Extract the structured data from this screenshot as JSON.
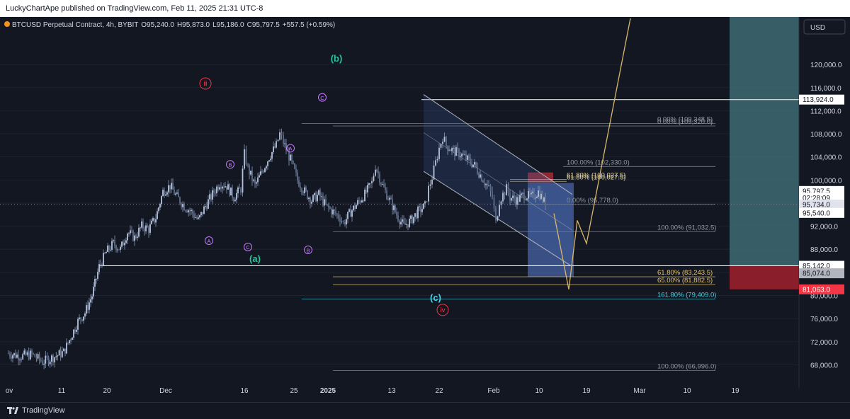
{
  "header": {
    "publisher": "LuckyChartApe published on TradingView.com, Feb 11, 2025 21:31 UTC-8"
  },
  "chart_data": {
    "type": "candlestick",
    "title": "BTCUSD Perpetual Contract, 4h, BYBIT",
    "ohlc": {
      "open": "O95,240.0",
      "high": "H95,873.0",
      "low": "L95,186.0",
      "close": "C95,797.5",
      "change": "+557.5 (+0.59%)"
    },
    "currency": "USD",
    "ylim": [
      64500,
      127000
    ],
    "y_ticks": [
      "68,000.0",
      "72,000.0",
      "76,000.0",
      "80,000.0",
      "84,000.0",
      "88,000.0",
      "92,000.0",
      "96,000.0",
      "100,000.0",
      "104,000.0",
      "108,000.0",
      "112,000.0",
      "116,000.0",
      "120,000.0"
    ],
    "x_ticks": [
      "ov",
      "11",
      "20",
      "Dec",
      "16",
      "25",
      "2025",
      "13",
      "22",
      "Feb",
      "10",
      "19",
      "Mar",
      "10",
      "19"
    ],
    "price_path": [
      [
        0,
        70000
      ],
      [
        4,
        69500
      ],
      [
        7,
        69800
      ],
      [
        10,
        68500
      ],
      [
        13,
        69300
      ],
      [
        16,
        70200
      ],
      [
        18,
        72800
      ],
      [
        20,
        75500
      ],
      [
        22,
        77000
      ],
      [
        24,
        80000
      ],
      [
        26,
        85000
      ],
      [
        28,
        87500
      ],
      [
        30,
        89000
      ],
      [
        32,
        88000
      ],
      [
        34,
        91000
      ],
      [
        36,
        90000
      ],
      [
        38,
        92000
      ],
      [
        40,
        91500
      ],
      [
        42,
        93500
      ],
      [
        44,
        98000
      ],
      [
        46,
        99000
      ],
      [
        48,
        97000
      ],
      [
        50,
        95500
      ],
      [
        52,
        94500
      ],
      [
        54,
        93000
      ],
      [
        56,
        95500
      ],
      [
        58,
        97500
      ],
      [
        60,
        99500
      ],
      [
        62,
        99000
      ],
      [
        64,
        97000
      ],
      [
        66,
        98500
      ],
      [
        67,
        104500
      ],
      [
        68,
        102000
      ],
      [
        70,
        99000
      ],
      [
        72,
        101500
      ],
      [
        74,
        104000
      ],
      [
        76,
        106000
      ],
      [
        77,
        108000
      ],
      [
        78,
        106500
      ],
      [
        80,
        103500
      ],
      [
        82,
        100000
      ],
      [
        84,
        98000
      ],
      [
        86,
        96500
      ],
      [
        88,
        97500
      ],
      [
        90,
        95500
      ],
      [
        92,
        94500
      ],
      [
        94,
        93500
      ],
      [
        95,
        92500
      ],
      [
        97,
        94500
      ],
      [
        99,
        96000
      ],
      [
        101,
        97500
      ],
      [
        103,
        99500
      ],
      [
        104,
        102500
      ],
      [
        106,
        99000
      ],
      [
        108,
        96500
      ],
      [
        110,
        94000
      ],
      [
        112,
        92000
      ],
      [
        114,
        93000
      ],
      [
        116,
        94500
      ],
      [
        118,
        95500
      ],
      [
        119,
        98500
      ],
      [
        120,
        100500
      ],
      [
        121,
        103000
      ],
      [
        122,
        105500
      ],
      [
        123,
        107500
      ],
      [
        124,
        106000
      ],
      [
        126,
        105000
      ],
      [
        128,
        104500
      ],
      [
        130,
        103500
      ],
      [
        132,
        102500
      ],
      [
        134,
        100500
      ],
      [
        136,
        98500
      ],
      [
        137,
        97000
      ],
      [
        138,
        92500
      ],
      [
        139,
        96500
      ],
      [
        140,
        97500
      ],
      [
        141,
        98500
      ],
      [
        142,
        97000
      ],
      [
        144,
        96500
      ],
      [
        146,
        97500
      ],
      [
        148,
        97000
      ],
      [
        150,
        98000
      ],
      [
        152,
        95797.5
      ]
    ],
    "wave_labels": [
      {
        "text": "ⅲ",
        "style": "circle-red",
        "date": 56,
        "price": 116700
      },
      {
        "text": "B",
        "style": "circle-purple",
        "date": 63,
        "price": 102700
      },
      {
        "text": "A",
        "style": "circle-purple",
        "date": 57,
        "price": 89500
      },
      {
        "text": "C",
        "style": "circle-purple",
        "date": 68,
        "price": 88400
      },
      {
        "text": "A",
        "style": "circle-purple",
        "date": 80,
        "price": 105500
      },
      {
        "text": "B",
        "style": "circle-purple",
        "date": 85,
        "price": 87900
      },
      {
        "text": "C",
        "style": "circle-purple",
        "date": 89,
        "price": 114300
      },
      {
        "text": "(a)",
        "style": "green",
        "date": 70,
        "price": 86300
      },
      {
        "text": "(b)",
        "style": "green",
        "date": 93,
        "price": 121000
      },
      {
        "text": "(c)",
        "style": "teal",
        "date": 121,
        "price": 79600
      },
      {
        "text": "ⅳ",
        "style": "circle-red",
        "date": 123,
        "price": 77500
      }
    ],
    "fib_levels": [
      {
        "label": "0.00% (109,348.5)",
        "price": 109800,
        "color": "#9598a1"
      },
      {
        "label": "0.00% (109,320.0)",
        "price": 109350,
        "color": "#9598a1"
      },
      {
        "label": "100.00% (102,330.0)",
        "price": 102330,
        "color": "#9598a1"
      },
      {
        "label": "61.80% (100,027.5)",
        "price": 100120,
        "color": "#e8d8a0"
      },
      {
        "label": "61.80% (100,027.5)",
        "price": 99760,
        "color": "#e8d8a0"
      },
      {
        "label": "0.00% (95,778.0)",
        "price": 95778,
        "color": "#9598a1"
      },
      {
        "label": "100.00% (91,032.5)",
        "price": 91032,
        "color": "#9598a1"
      },
      {
        "label": "61.80% (83,243.5)",
        "price": 83243,
        "color": "#e8c56b"
      },
      {
        "label": "65.00% (81,882.5)",
        "price": 81882,
        "color": "#e8c56b"
      },
      {
        "label": "161.80% (79,409.0)",
        "price": 79409,
        "color": "#4dd0e1"
      },
      {
        "label": "100.00% (66,996.0)",
        "price": 66996,
        "color": "#9598a1"
      }
    ],
    "price_labels": [
      {
        "text": "113,924.0",
        "price": 113924,
        "bg": "#ffffff",
        "fg": "#131722"
      },
      {
        "text": "95,797.5",
        "price": 98100,
        "bg": "#ffffff",
        "fg": "#131722"
      },
      {
        "text": "02:28:09",
        "price": 96900,
        "bg": "#ffffff",
        "fg": "#131722"
      },
      {
        "text": "95,734.0",
        "price": 95734,
        "bg": "#e0e3eb",
        "fg": "#131722"
      },
      {
        "text": "95,540.0",
        "price": 94300,
        "bg": "#ffffff",
        "fg": "#131722"
      },
      {
        "text": "85,142.0",
        "price": 85142,
        "bg": "#ffffff",
        "fg": "#131722"
      },
      {
        "text": "85,074.0",
        "price": 83850,
        "bg": "#b2b5be",
        "fg": "#131722"
      },
      {
        "text": "81,063.0",
        "price": 81063,
        "bg": "#f23645",
        "fg": "#ffffff"
      }
    ],
    "target_lines": [
      {
        "name": "high-target",
        "price": 113924,
        "date_start": 117,
        "color": "#ffffff"
      },
      {
        "name": "support",
        "price": 85142,
        "date_start": 26,
        "color": "#ffffff"
      }
    ],
    "colors": {
      "candle": "#8a9ab8",
      "projection": "#d9b86b",
      "accent_green": "#26c6a0",
      "wave_red": "#f23645",
      "wave_purple": "#c77dff"
    },
    "footer_brand": "TradingView"
  }
}
